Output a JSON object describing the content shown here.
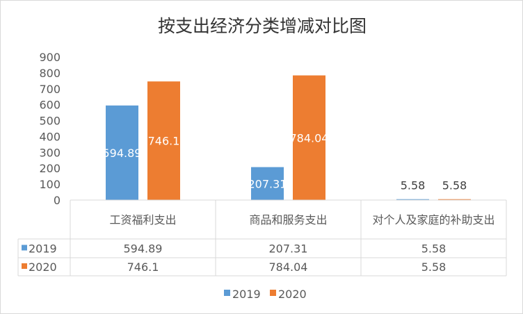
{
  "chart_data": {
    "type": "bar",
    "title": "按支出经济分类增减对比图",
    "categories": [
      "工资福利支出",
      "商品和服务支出",
      "对个人及家庭的补助支出"
    ],
    "series": [
      {
        "name": "2019",
        "values": [
          594.89,
          207.31,
          5.58
        ],
        "color": "#5b9bd5"
      },
      {
        "name": "2020",
        "values": [
          746.1,
          784.04,
          5.58
        ],
        "color": "#ed7d31"
      }
    ],
    "data_labels": {
      "2019": [
        "594.89",
        "207.31",
        "5.58"
      ],
      "2020": [
        "746.1",
        "784.04",
        "5.58"
      ]
    },
    "yticks": [
      "0",
      "100",
      "200",
      "300",
      "400",
      "500",
      "600",
      "700",
      "800",
      "900"
    ],
    "ylim": [
      0,
      900
    ],
    "xlabel": "",
    "ylabel": "",
    "grid": false,
    "legend": "bottom",
    "data_table": true
  }
}
